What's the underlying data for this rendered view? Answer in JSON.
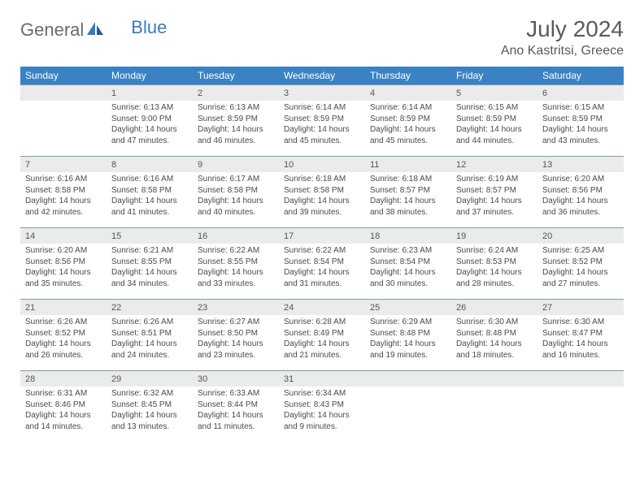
{
  "brand": {
    "word1": "General",
    "word2": "Blue"
  },
  "title": {
    "month": "July 2024",
    "location": "Ano Kastritsi, Greece"
  },
  "colors": {
    "header_bg": "#3a82c4",
    "header_text": "#ffffff",
    "daynum_bg": "#ebebeb",
    "row_border": "#7a9ab5",
    "text": "#4a4a4a",
    "brand_gray": "#6a6a6a",
    "brand_blue": "#3a7ab8"
  },
  "typography": {
    "month_fontsize": 28,
    "location_fontsize": 16,
    "dayhead_fontsize": 12,
    "daynum_fontsize": 11,
    "cell_fontsize": 10
  },
  "days": [
    "Sunday",
    "Monday",
    "Tuesday",
    "Wednesday",
    "Thursday",
    "Friday",
    "Saturday"
  ],
  "weeks": [
    {
      "nums": [
        "",
        "1",
        "2",
        "3",
        "4",
        "5",
        "6"
      ],
      "cells": [
        "",
        "Sunrise: 6:13 AM\nSunset: 9:00 PM\nDaylight: 14 hours and 47 minutes.",
        "Sunrise: 6:13 AM\nSunset: 8:59 PM\nDaylight: 14 hours and 46 minutes.",
        "Sunrise: 6:14 AM\nSunset: 8:59 PM\nDaylight: 14 hours and 45 minutes.",
        "Sunrise: 6:14 AM\nSunset: 8:59 PM\nDaylight: 14 hours and 45 minutes.",
        "Sunrise: 6:15 AM\nSunset: 8:59 PM\nDaylight: 14 hours and 44 minutes.",
        "Sunrise: 6:15 AM\nSunset: 8:59 PM\nDaylight: 14 hours and 43 minutes."
      ]
    },
    {
      "nums": [
        "7",
        "8",
        "9",
        "10",
        "11",
        "12",
        "13"
      ],
      "cells": [
        "Sunrise: 6:16 AM\nSunset: 8:58 PM\nDaylight: 14 hours and 42 minutes.",
        "Sunrise: 6:16 AM\nSunset: 8:58 PM\nDaylight: 14 hours and 41 minutes.",
        "Sunrise: 6:17 AM\nSunset: 8:58 PM\nDaylight: 14 hours and 40 minutes.",
        "Sunrise: 6:18 AM\nSunset: 8:58 PM\nDaylight: 14 hours and 39 minutes.",
        "Sunrise: 6:18 AM\nSunset: 8:57 PM\nDaylight: 14 hours and 38 minutes.",
        "Sunrise: 6:19 AM\nSunset: 8:57 PM\nDaylight: 14 hours and 37 minutes.",
        "Sunrise: 6:20 AM\nSunset: 8:56 PM\nDaylight: 14 hours and 36 minutes."
      ]
    },
    {
      "nums": [
        "14",
        "15",
        "16",
        "17",
        "18",
        "19",
        "20"
      ],
      "cells": [
        "Sunrise: 6:20 AM\nSunset: 8:56 PM\nDaylight: 14 hours and 35 minutes.",
        "Sunrise: 6:21 AM\nSunset: 8:55 PM\nDaylight: 14 hours and 34 minutes.",
        "Sunrise: 6:22 AM\nSunset: 8:55 PM\nDaylight: 14 hours and 33 minutes.",
        "Sunrise: 6:22 AM\nSunset: 8:54 PM\nDaylight: 14 hours and 31 minutes.",
        "Sunrise: 6:23 AM\nSunset: 8:54 PM\nDaylight: 14 hours and 30 minutes.",
        "Sunrise: 6:24 AM\nSunset: 8:53 PM\nDaylight: 14 hours and 28 minutes.",
        "Sunrise: 6:25 AM\nSunset: 8:52 PM\nDaylight: 14 hours and 27 minutes."
      ]
    },
    {
      "nums": [
        "21",
        "22",
        "23",
        "24",
        "25",
        "26",
        "27"
      ],
      "cells": [
        "Sunrise: 6:26 AM\nSunset: 8:52 PM\nDaylight: 14 hours and 26 minutes.",
        "Sunrise: 6:26 AM\nSunset: 8:51 PM\nDaylight: 14 hours and 24 minutes.",
        "Sunrise: 6:27 AM\nSunset: 8:50 PM\nDaylight: 14 hours and 23 minutes.",
        "Sunrise: 6:28 AM\nSunset: 8:49 PM\nDaylight: 14 hours and 21 minutes.",
        "Sunrise: 6:29 AM\nSunset: 8:48 PM\nDaylight: 14 hours and 19 minutes.",
        "Sunrise: 6:30 AM\nSunset: 8:48 PM\nDaylight: 14 hours and 18 minutes.",
        "Sunrise: 6:30 AM\nSunset: 8:47 PM\nDaylight: 14 hours and 16 minutes."
      ]
    },
    {
      "nums": [
        "28",
        "29",
        "30",
        "31",
        "",
        "",
        ""
      ],
      "cells": [
        "Sunrise: 6:31 AM\nSunset: 8:46 PM\nDaylight: 14 hours and 14 minutes.",
        "Sunrise: 6:32 AM\nSunset: 8:45 PM\nDaylight: 14 hours and 13 minutes.",
        "Sunrise: 6:33 AM\nSunset: 8:44 PM\nDaylight: 14 hours and 11 minutes.",
        "Sunrise: 6:34 AM\nSunset: 8:43 PM\nDaylight: 14 hours and 9 minutes.",
        "",
        "",
        ""
      ]
    }
  ]
}
